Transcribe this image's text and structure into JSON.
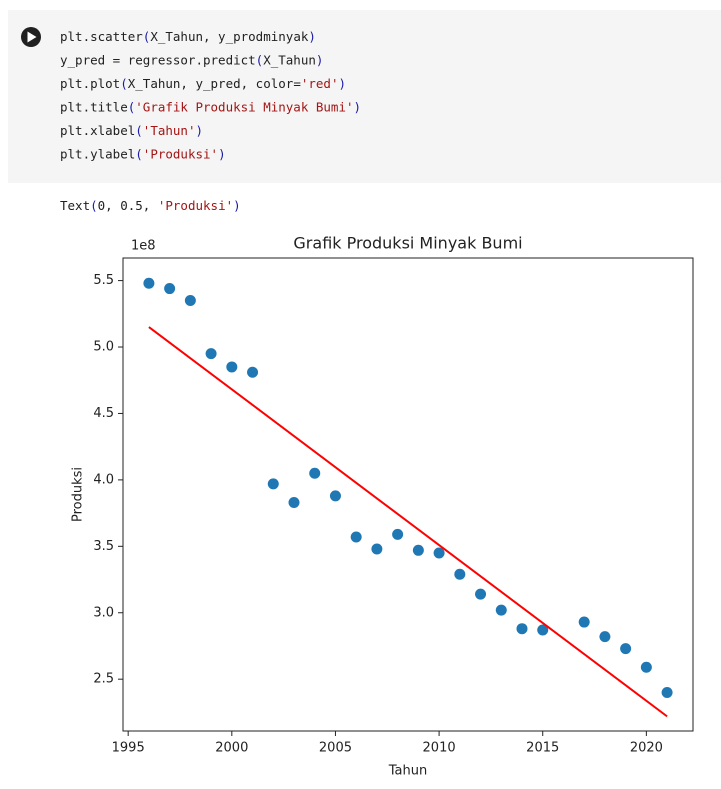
{
  "code_cell": {
    "lines": [
      "plt.scatter(X_Tahun, y_prodminyak)",
      "y_pred = regressor.predict(X_Tahun)",
      "plt.plot(X_Tahun, y_pred, color='red')",
      "plt.title('Grafik Produksi Minyak Bumi')",
      "plt.xlabel('Tahun')",
      "plt.ylabel('Produksi')"
    ],
    "output": "Text(0, 0.5, 'Produksi')"
  },
  "chart_data": {
    "type": "scatter",
    "title": "Grafik Produksi Minyak Bumi",
    "x_label": "Tahun",
    "y_label": "Produksi",
    "y_offset_text": "1e8",
    "xlim": [
      1994.75,
      2022.25
    ],
    "ylim": [
      2.11,
      5.67
    ],
    "xticks": [
      1995,
      2000,
      2005,
      2010,
      2015,
      2020
    ],
    "yticks": [
      2.5,
      {
        "value": 3,
        "label": "3.0"
      },
      3.5,
      {
        "value": 4,
        "label": "4.0"
      },
      4.5,
      {
        "value": 5,
        "label": "5.0"
      },
      5.5
    ],
    "series": [
      {
        "kind": "scatter",
        "color": "#1f77b4",
        "x": [
          1996,
          1997,
          1998,
          1999,
          2000,
          2001,
          2002,
          2003,
          2004,
          2005,
          2006,
          2007,
          2008,
          2009,
          2010,
          2011,
          2012,
          2013,
          2014,
          2015,
          2017,
          2018,
          2019,
          2020,
          2021
        ],
        "values": [
          5.48,
          5.44,
          5.35,
          4.95,
          4.85,
          4.81,
          3.97,
          3.83,
          4.05,
          3.88,
          3.57,
          3.48,
          3.59,
          3.47,
          3.45,
          3.29,
          3.14,
          3.02,
          2.88,
          2.87,
          2.93,
          2.82,
          2.73,
          2.59,
          2.4
        ]
      },
      {
        "kind": "line",
        "color": "red",
        "x": [
          1996,
          2021
        ],
        "values": [
          5.15,
          2.22
        ]
      }
    ]
  }
}
